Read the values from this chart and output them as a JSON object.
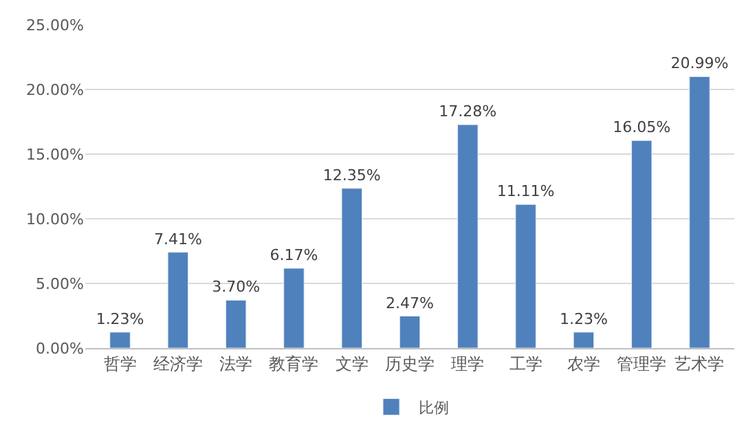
{
  "chart_data": {
    "type": "bar",
    "categories": [
      "哲学",
      "经济学",
      "法学",
      "教育学",
      "文学",
      "历史学",
      "理学",
      "工学",
      "农学",
      "管理学",
      "艺术学"
    ],
    "series": [
      {
        "name": "比例",
        "color": "#4f81bd",
        "values": [
          1.23,
          7.41,
          3.7,
          6.17,
          12.35,
          2.47,
          17.28,
          11.11,
          1.23,
          16.05,
          20.99
        ],
        "value_labels": [
          "1.23%",
          "7.41%",
          "3.70%",
          "6.17%",
          "12.35%",
          "2.47%",
          "17.28%",
          "11.11%",
          "1.23%",
          "16.05%",
          "20.99%"
        ]
      }
    ],
    "ylim": [
      0,
      25
    ],
    "yticks": [
      {
        "value": 0,
        "label": "0.00%"
      },
      {
        "value": 5,
        "label": "5.00%"
      },
      {
        "value": 10,
        "label": "10.00%"
      },
      {
        "value": 15,
        "label": "15.00%"
      },
      {
        "value": 20,
        "label": "20.00%"
      },
      {
        "value": 25,
        "label": "25.00%"
      }
    ],
    "grid": "y",
    "legend": "bottom"
  }
}
